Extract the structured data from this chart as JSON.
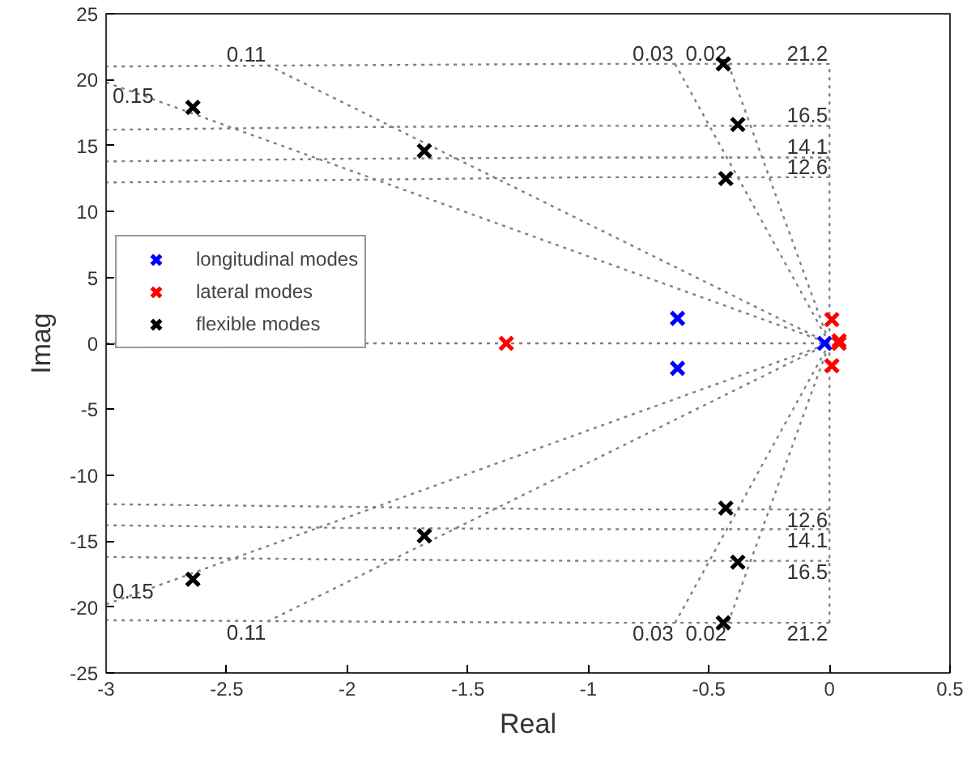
{
  "chart_data": {
    "type": "scatter",
    "xlabel": "Real",
    "ylabel": "Imag",
    "xlim": [
      -3,
      0.5
    ],
    "ylim": [
      -25,
      25
    ],
    "xticks": [
      -3,
      -2.5,
      -2,
      -1.5,
      -1,
      -0.5,
      0,
      0.5
    ],
    "yticks": [
      -25,
      -20,
      -15,
      -10,
      -5,
      0,
      5,
      10,
      15,
      20,
      25
    ],
    "grid": false,
    "legend": "left",
    "series": [
      {
        "type": "line",
        "marker": "none",
        "line_style": "dotted",
        "color": "#808080",
        "x": [
          -3,
          0
        ],
        "values": [
          0,
          0
        ]
      },
      {
        "type": "line",
        "marker": "none",
        "line_style": "dotted",
        "color": "#808080",
        "x": [
          0,
          0
        ],
        "values": [
          -21.2,
          21.2
        ]
      },
      {
        "type": "line",
        "marker": "none",
        "line_style": "dotted",
        "name": "21.2",
        "color": "#808080",
        "x": [
          0,
          -1,
          -2,
          -3
        ],
        "values": [
          21.2,
          21.2,
          21.1,
          21.0
        ]
      },
      {
        "type": "line",
        "marker": "none",
        "line_style": "dotted",
        "name": "16.5",
        "color": "#808080",
        "x": [
          0,
          -1,
          -2,
          -3
        ],
        "values": [
          16.5,
          16.5,
          16.4,
          16.2
        ]
      },
      {
        "type": "line",
        "marker": "none",
        "line_style": "dotted",
        "name": "14.1",
        "color": "#808080",
        "x": [
          0,
          -1,
          -2,
          -3
        ],
        "values": [
          14.1,
          14.1,
          14.0,
          13.8
        ]
      },
      {
        "type": "line",
        "marker": "none",
        "line_style": "dotted",
        "name": "12.6",
        "color": "#808080",
        "x": [
          0,
          -1,
          -2,
          -3
        ],
        "values": [
          12.6,
          12.6,
          12.4,
          12.2
        ]
      },
      {
        "type": "line",
        "marker": "none",
        "line_style": "dotted",
        "name": "21.2",
        "color": "#808080",
        "x": [
          0,
          -1,
          -2,
          -3
        ],
        "values": [
          -21.2,
          -21.2,
          -21.1,
          -21.0
        ]
      },
      {
        "type": "line",
        "marker": "none",
        "line_style": "dotted",
        "name": "16.5",
        "color": "#808080",
        "x": [
          0,
          -1,
          -2,
          -3
        ],
        "values": [
          -16.5,
          -16.5,
          -16.4,
          -16.2
        ]
      },
      {
        "type": "line",
        "marker": "none",
        "line_style": "dotted",
        "name": "14.1",
        "color": "#808080",
        "x": [
          0,
          -1,
          -2,
          -3
        ],
        "values": [
          -14.1,
          -14.1,
          -14.0,
          -13.8
        ]
      },
      {
        "type": "line",
        "marker": "none",
        "line_style": "dotted",
        "name": "12.6",
        "color": "#808080",
        "x": [
          0,
          -1,
          -2,
          -3
        ],
        "values": [
          -12.6,
          -12.6,
          -12.4,
          -12.2
        ]
      },
      {
        "type": "line",
        "marker": "none",
        "line_style": "dotted",
        "name": "0.15",
        "color": "#808080",
        "x": [
          -3,
          0
        ],
        "values": [
          19.8,
          0
        ]
      },
      {
        "type": "line",
        "marker": "none",
        "line_style": "dotted",
        "name": "0.11",
        "color": "#808080",
        "x": [
          -2.33,
          0
        ],
        "values": [
          21.1,
          0
        ]
      },
      {
        "type": "line",
        "marker": "none",
        "line_style": "dotted",
        "name": "0.03",
        "color": "#808080",
        "x": [
          -0.64,
          0
        ],
        "values": [
          21.2,
          0
        ]
      },
      {
        "type": "line",
        "marker": "none",
        "line_style": "dotted",
        "name": "0.02",
        "color": "#808080",
        "x": [
          -0.42,
          0
        ],
        "values": [
          21.2,
          0
        ]
      },
      {
        "type": "line",
        "marker": "none",
        "line_style": "dotted",
        "name": "0.15",
        "color": "#808080",
        "x": [
          -3,
          0
        ],
        "values": [
          -19.8,
          0
        ]
      },
      {
        "type": "line",
        "marker": "none",
        "line_style": "dotted",
        "name": "0.11",
        "color": "#808080",
        "x": [
          -2.33,
          0
        ],
        "values": [
          -21.1,
          0
        ]
      },
      {
        "type": "line",
        "marker": "none",
        "line_style": "dotted",
        "name": "0.03",
        "color": "#808080",
        "x": [
          -0.64,
          0
        ],
        "values": [
          -21.2,
          0
        ]
      },
      {
        "type": "line",
        "marker": "none",
        "line_style": "dotted",
        "name": "0.02",
        "color": "#808080",
        "x": [
          -0.42,
          0
        ],
        "values": [
          -21.2,
          0
        ]
      },
      {
        "name": "longitudinal modes",
        "marker": "cross",
        "color": "#0000ff",
        "x": [
          -0.63,
          -0.63,
          -0.02
        ],
        "values": [
          1.9,
          -1.9,
          0
        ]
      },
      {
        "name": "lateral modes",
        "marker": "cross",
        "color": "#ff0000",
        "x": [
          -1.34,
          0.01,
          0.01,
          0.04,
          0.04
        ],
        "values": [
          0,
          1.8,
          -1.7,
          0.2,
          0
        ]
      },
      {
        "name": "flexible modes",
        "marker": "cross",
        "color": "#000000",
        "x": [
          -2.64,
          -2.64,
          -1.68,
          -1.68,
          -0.44,
          -0.44,
          -0.38,
          -0.38,
          -0.43,
          -0.43
        ],
        "values": [
          17.9,
          -17.9,
          14.6,
          -14.6,
          21.2,
          -21.2,
          16.6,
          -16.6,
          12.5,
          -12.5
        ]
      }
    ]
  }
}
